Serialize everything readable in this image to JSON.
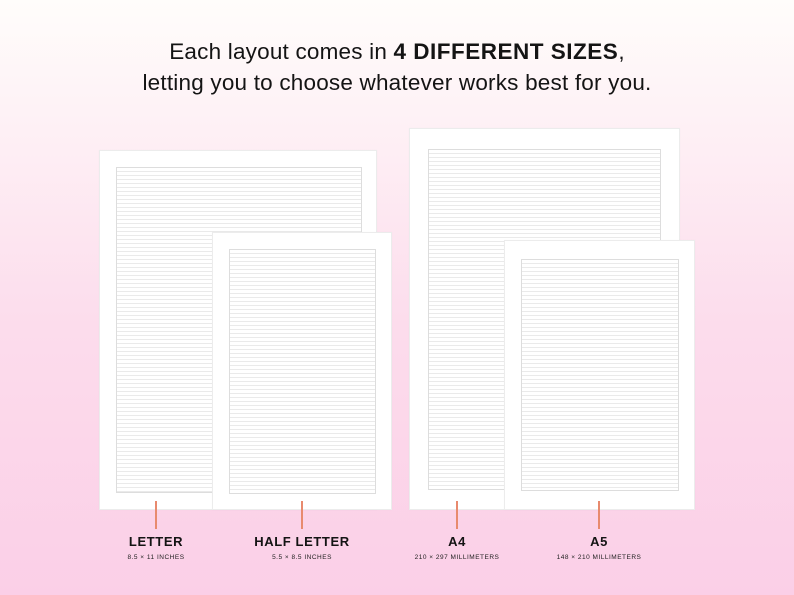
{
  "headline": {
    "line1_pre": "Each layout comes in ",
    "line1_bold": "4 DIFFERENT SIZES",
    "line1_post": ",",
    "line2": "letting you to choose whatever works best for you."
  },
  "sizes": [
    {
      "name": "LETTER",
      "dims": "8.5 × 11 INCHES"
    },
    {
      "name": "HALF LETTER",
      "dims": "5.5 × 8.5 INCHES"
    },
    {
      "name": "A4",
      "dims": "210 × 297 MILLIMETERS"
    },
    {
      "name": "A5",
      "dims": "148 × 210 MILLIMETERS"
    }
  ],
  "colors": {
    "accent_tick": "#e88a6e",
    "background_top": "#fffdfb",
    "background_bottom": "#fbcfe7"
  }
}
